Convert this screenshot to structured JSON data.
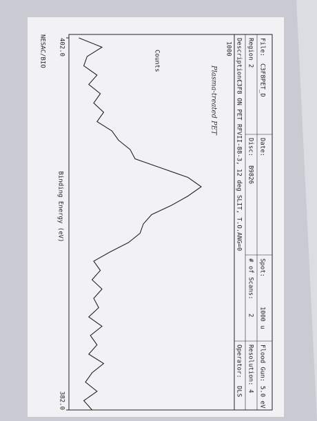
{
  "chart_data": {
    "type": "line",
    "header": [
      [
        "File:",
        "C3F8PET_D",
        "Date:",
        "Spot:",
        "1000 u",
        "Flood Gun:",
        "5.0 eV"
      ],
      [
        "Region 2",
        "Disc:",
        "B9826",
        "# of Scans:",
        "2",
        "Resolution:",
        "4"
      ],
      [
        "Description:",
        "C3F8 ON PET RFVII-88-3, 12 deg SLIT, T.O.ANG=0",
        "Operator:",
        "DLS"
      ]
    ],
    "annotation": "Plasma-treated PET",
    "ylabel": "Counts",
    "xlabel": "Binding Energy (eV)",
    "footer": "NESAC/BIO",
    "x": [
      402,
      401.5,
      401,
      400.5,
      400,
      399.5,
      399,
      398.5,
      398,
      397.5,
      397,
      396.5,
      396,
      395.5,
      395,
      394.5,
      394,
      393.5,
      393,
      392.5,
      392,
      391.5,
      391,
      390.5,
      390,
      389.5,
      389,
      388.5,
      388,
      387.5,
      387,
      386.5,
      386,
      385.5,
      385,
      384.5,
      384,
      383.5,
      383,
      382.5,
      382
    ],
    "series": [
      {
        "name": "Counts",
        "color": "#222222",
        "values": [
          60,
          200,
          110,
          90,
          170,
          120,
          190,
          150,
          210,
          170,
          260,
          300,
          370,
          400,
          560,
          720,
          800,
          720,
          620,
          500,
          450,
          430,
          360,
          250,
          150,
          190,
          140,
          200,
          150,
          180,
          120,
          200,
          130,
          170,
          120,
          210,
          140,
          100,
          170,
          90,
          140
        ]
      }
    ],
    "xlim": [
      402,
      382
    ],
    "xticks": [
      {
        "value": 402,
        "label": "402.0"
      },
      {
        "value": 382,
        "label": "382.0"
      }
    ],
    "ylim": [
      0,
      1000
    ],
    "yticks": [
      1000
    ]
  }
}
